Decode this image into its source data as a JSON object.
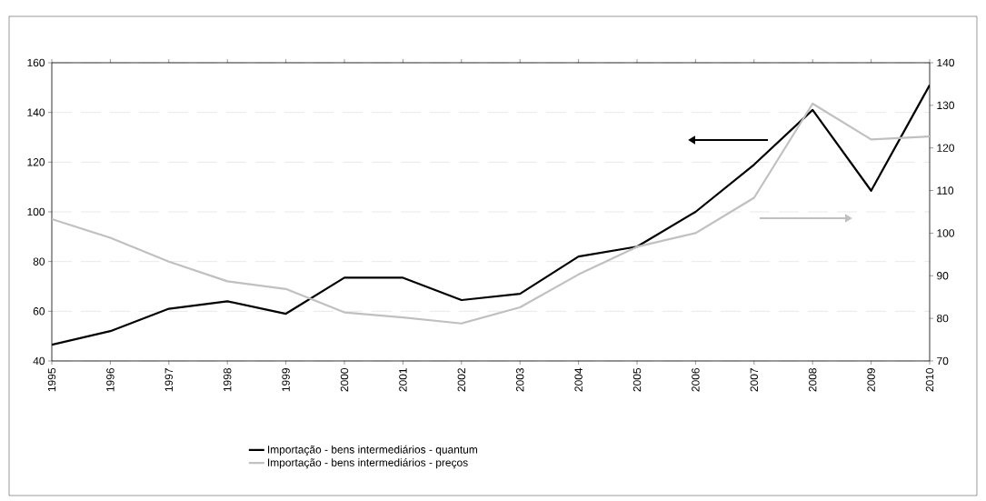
{
  "chart_data": {
    "type": "line",
    "categories": [
      "1995",
      "1996",
      "1997",
      "1998",
      "1999",
      "2000",
      "2001",
      "2002",
      "2003",
      "2004",
      "2005",
      "2006",
      "2007",
      "2008",
      "2009",
      "2010"
    ],
    "series": [
      {
        "name": "Importação - bens intermediários - quantum",
        "color": "#000000",
        "values": [
          46.5,
          52,
          61,
          64,
          59,
          73.5,
          73.5,
          64.5,
          67,
          82,
          86,
          100,
          119,
          141,
          108.5,
          151
        ]
      },
      {
        "name": "Importação - bens intermediários - preços",
        "color": "#c0c0c0",
        "axis": "y2",
        "values": [
          103.3,
          98.9,
          93.3,
          88.7,
          86.9,
          81.4,
          80.2,
          78.8,
          82.6,
          90.3,
          96.8,
          100,
          108.3,
          130.4,
          122,
          122.7
        ]
      }
    ],
    "ylim": [
      40,
      160
    ],
    "yticks": [
      40,
      60,
      80,
      100,
      120,
      140,
      160
    ],
    "y2lim": [
      70,
      140
    ],
    "y2ticks": [
      70,
      80,
      90,
      100,
      110,
      120,
      130,
      140
    ],
    "grid": "y",
    "legend": "bottom",
    "marker": "none",
    "line_style": "solid"
  }
}
